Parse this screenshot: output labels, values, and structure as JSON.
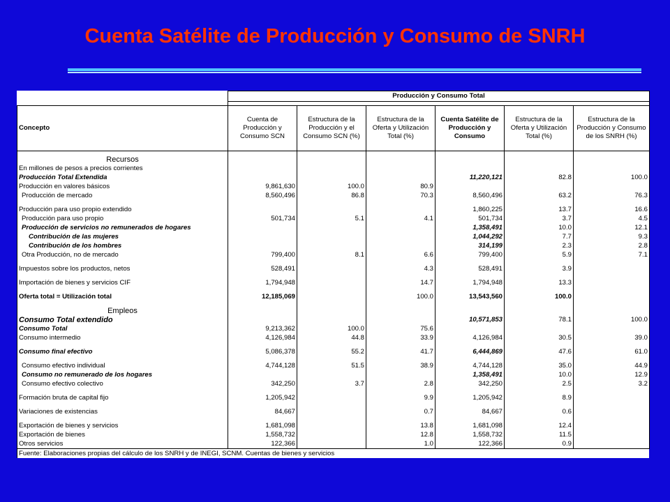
{
  "title": "Cuenta Satélite de Producción y Consumo de SNRH",
  "table": {
    "group_header": "Producción y Consumo Total",
    "columns": [
      "Concepto",
      "Cuenta de Producción y Consumo SCN",
      "Estructura de la Producción y el Consumo SCN (%)",
      "Estructura de la Oferta y Utilización Total (%)",
      "Cuenta Satélite de Producción y Consumo",
      "Estructura de la Oferta y Utilización Total (%)",
      "Estructura de la Producción y Consumo de los SNRH (%)"
    ],
    "recursos_label": "Recursos",
    "units_label": "En millones de pesos a precios corrientes",
    "empleos_label": "Empleos",
    "rows_recursos": [
      {
        "label": "Producción Total Extendida",
        "style": "bi",
        "v": [
          "",
          "",
          "",
          "11,220,121",
          "82.8",
          "100.0"
        ],
        "vs": [
          "",
          "",
          "",
          "bi",
          "",
          ""
        ]
      },
      {
        "label": "Producción en valores básicos",
        "style": "",
        "v": [
          "9,861,630",
          "100.0",
          "80.9",
          "",
          "",
          ""
        ]
      },
      {
        "label": "Producción de mercado",
        "style": "ind",
        "v": [
          "8,560,496",
          "86.8",
          "70.3",
          "8,560,496",
          "63.2",
          "76.3"
        ]
      },
      {
        "sp": true
      },
      {
        "label": "Producción para uso propio extendido",
        "style": "",
        "v": [
          "",
          "",
          "",
          "1,860,225",
          "13.7",
          "16.6"
        ]
      },
      {
        "label": "Producción para uso propio",
        "style": "ind",
        "v": [
          "501,734",
          "5.1",
          "4.1",
          "501,734",
          "3.7",
          "4.5"
        ]
      },
      {
        "label": "Producción de servicios no remunerados de hogares",
        "style": "bi ind",
        "v": [
          "",
          "",
          "",
          "1,358,491",
          "10.0",
          "12.1"
        ],
        "vs": [
          "",
          "",
          "",
          "bi",
          "",
          ""
        ]
      },
      {
        "label": "Contribución de las mujeres",
        "style": "bi ind2",
        "v": [
          "",
          "",
          "",
          "1,044,292",
          "7.7",
          "9.3"
        ],
        "vs": [
          "",
          "",
          "",
          "bi",
          "",
          ""
        ]
      },
      {
        "label": "Contribución de los hombres",
        "style": "bi ind2",
        "v": [
          "",
          "",
          "",
          "314,199",
          "2.3",
          "2.8"
        ],
        "vs": [
          "",
          "",
          "",
          "bi",
          "",
          ""
        ]
      },
      {
        "label": "Otra Producción, no de mercado",
        "style": "ind",
        "v": [
          "799,400",
          "8.1",
          "6.6",
          "799,400",
          "5.9",
          "7.1"
        ]
      },
      {
        "sp": true
      },
      {
        "label": "Impuestos sobre los productos, netos",
        "style": "",
        "v": [
          "528,491",
          "",
          "4.3",
          "528,491",
          "3.9",
          ""
        ]
      },
      {
        "sp": true
      },
      {
        "label": "Importación de bienes y servicios CIF",
        "style": "",
        "v": [
          "1,794,948",
          "",
          "14.7",
          "1,794,948",
          "13.3",
          ""
        ]
      },
      {
        "sp": true
      },
      {
        "label": "Oferta total = Utilización total",
        "style": "b",
        "v": [
          "12,185,069",
          "",
          "100.0",
          "13,543,560",
          "100.0",
          ""
        ],
        "vs": [
          "b",
          "",
          "",
          "b",
          "b",
          ""
        ]
      }
    ],
    "rows_empleos": [
      {
        "label": "Consumo Total extendido",
        "style": "big",
        "v": [
          "",
          "",
          "",
          "10,571,853",
          "78.1",
          "100.0"
        ],
        "vs": [
          "",
          "",
          "",
          "bi",
          "",
          ""
        ]
      },
      {
        "label": "Consumo Total",
        "style": "bi",
        "v": [
          "9,213,362",
          "100.0",
          "75.6",
          "",
          "",
          ""
        ]
      },
      {
        "label": "Consumo intermedio",
        "style": "",
        "v": [
          "4,126,984",
          "44.8",
          "33.9",
          "4,126,984",
          "30.5",
          "39.0"
        ]
      },
      {
        "sp": true
      },
      {
        "label": "Consumo final efectivo",
        "style": "bi",
        "v": [
          "5,086,378",
          "55.2",
          "41.7",
          "6,444,869",
          "47.6",
          "61.0"
        ],
        "vs": [
          "",
          "",
          "",
          "bi",
          "",
          ""
        ]
      },
      {
        "sp": true
      },
      {
        "label": "Consumo efectivo individual",
        "style": "ind",
        "v": [
          "4,744,128",
          "51.5",
          "38.9",
          "4,744,128",
          "35.0",
          "44.9"
        ]
      },
      {
        "label": "Consumo no remunerado de los hogares",
        "style": "bi ind",
        "v": [
          "",
          "",
          "",
          "1,358,491",
          "10.0",
          "12.9"
        ],
        "vs": [
          "",
          "",
          "",
          "bi",
          "",
          ""
        ]
      },
      {
        "label": "Consumo efectivo colectivo",
        "style": "ind",
        "v": [
          "342,250",
          "3.7",
          "2.8",
          "342,250",
          "2.5",
          "3.2"
        ]
      },
      {
        "sp": true
      },
      {
        "label": "Formación bruta de capital fijo",
        "style": "",
        "v": [
          "1,205,942",
          "",
          "9.9",
          "1,205,942",
          "8.9",
          ""
        ]
      },
      {
        "sp": true
      },
      {
        "label": "Variaciones de existencias",
        "style": "",
        "v": [
          "84,667",
          "",
          "0.7",
          "84,667",
          "0.6",
          ""
        ]
      },
      {
        "sp": true
      },
      {
        "label": "Exportación de bienes y servicios",
        "style": "",
        "v": [
          "1,681,098",
          "",
          "13.8",
          "1,681,098",
          "12.4",
          ""
        ]
      },
      {
        "label": "Exportación de bienes",
        "style": "",
        "v": [
          "1,558,732",
          "",
          "12.8",
          "1,558,732",
          "11.5",
          ""
        ]
      },
      {
        "label": "Otros servicios",
        "style": "",
        "v": [
          "122,366",
          "",
          "1.0",
          "122,366",
          "0.9",
          ""
        ]
      }
    ],
    "source": "Fuente: Elaboraciones propias del cálculo de los SNRH y de INEGI, SCNM. Cuentas de bienes y servicios"
  }
}
